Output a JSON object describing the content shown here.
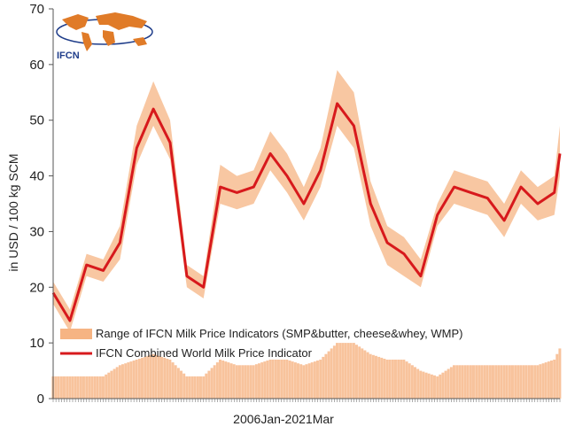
{
  "chart_data": {
    "type": "line",
    "xlabel": "2006Jan-2021Mar",
    "ylabel": "in USD / 100 kg SCM",
    "ylim": [
      0,
      70
    ],
    "yticks": [
      0,
      10,
      20,
      30,
      40,
      50,
      60,
      70
    ],
    "x_start": "2006-01",
    "x_end": "2021-03",
    "legend_position": "bottom-left",
    "grid": false,
    "series": [
      {
        "name": "IFCN Combined World Milk Price Indicator",
        "kind": "line",
        "color": "#d7191c",
        "x": [
          "2006-01",
          "2006-07",
          "2007-01",
          "2007-07",
          "2008-01",
          "2008-07",
          "2009-01",
          "2009-07",
          "2010-01",
          "2010-07",
          "2011-01",
          "2011-07",
          "2012-01",
          "2012-07",
          "2013-01",
          "2013-07",
          "2014-01",
          "2014-07",
          "2015-01",
          "2015-07",
          "2016-01",
          "2016-07",
          "2017-01",
          "2017-07",
          "2018-01",
          "2018-07",
          "2019-01",
          "2019-07",
          "2020-01",
          "2020-07",
          "2021-01",
          "2021-03"
        ],
        "values": [
          19,
          14,
          24,
          23,
          28,
          45,
          52,
          46,
          22,
          20,
          38,
          37,
          38,
          44,
          40,
          35,
          41,
          53,
          49,
          35,
          28,
          26,
          22,
          33,
          38,
          37,
          36,
          32,
          38,
          35,
          37,
          44
        ]
      },
      {
        "name": "Range of IFCN Milk Price Indicators (SMP&butter, cheese&whey, WMP)",
        "kind": "range",
        "color": "#f6b483",
        "x": [
          "2006-01",
          "2006-07",
          "2007-01",
          "2007-07",
          "2008-01",
          "2008-07",
          "2009-01",
          "2009-07",
          "2010-01",
          "2010-07",
          "2011-01",
          "2011-07",
          "2012-01",
          "2012-07",
          "2013-01",
          "2013-07",
          "2014-01",
          "2014-07",
          "2015-01",
          "2015-07",
          "2016-01",
          "2016-07",
          "2017-01",
          "2017-07",
          "2018-01",
          "2018-07",
          "2019-01",
          "2019-07",
          "2020-01",
          "2020-07",
          "2021-01",
          "2021-03"
        ],
        "low": [
          17,
          12,
          22,
          21,
          25,
          42,
          49,
          43,
          20,
          18,
          35,
          34,
          35,
          41,
          37,
          32,
          38,
          49,
          45,
          31,
          24,
          22,
          20,
          31,
          35,
          34,
          33,
          29,
          35,
          32,
          33,
          40
        ],
        "high": [
          21,
          16,
          26,
          25,
          31,
          49,
          57,
          50,
          24,
          22,
          42,
          40,
          41,
          48,
          44,
          38,
          45,
          59,
          55,
          39,
          31,
          29,
          25,
          35,
          41,
          40,
          39,
          35,
          41,
          38,
          40,
          49
        ]
      }
    ]
  },
  "logo": {
    "text": "IFCN"
  }
}
